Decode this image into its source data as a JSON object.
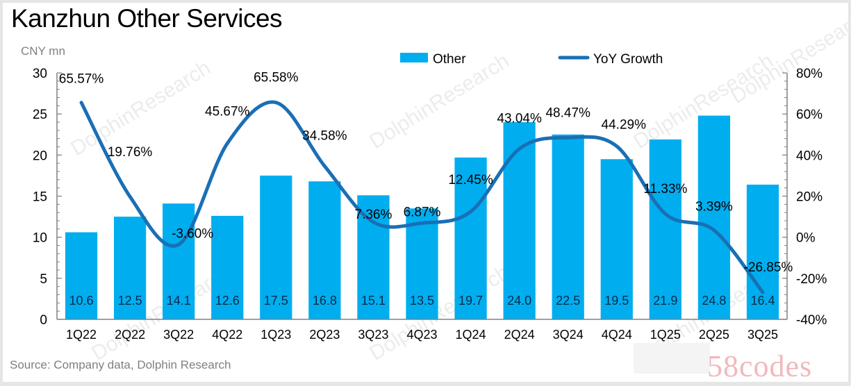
{
  "title": "Kanzhun Other Services",
  "unit_label": "CNY mn",
  "source": "Source: Company data, Dolphin Research",
  "watermark_text": "DolphinResearch",
  "corner_watermark": "58codes",
  "colors": {
    "bar": "#00AEEF",
    "line": "#1A6FB5",
    "axis": "#808080",
    "watermark": "#F2B8BC"
  },
  "chart_data": {
    "type": "bar+line",
    "title": "Kanzhun Other Services",
    "xlabel": "",
    "ylabel": "CNY mn",
    "y2label": "YoY Growth",
    "categories": [
      "1Q22",
      "2Q22",
      "3Q22",
      "4Q22",
      "1Q23",
      "2Q23",
      "3Q23",
      "4Q23",
      "1Q24",
      "2Q24",
      "3Q24",
      "4Q24",
      "1Q25",
      "2Q25",
      "3Q25"
    ],
    "series": [
      {
        "name": "Other",
        "type": "bar",
        "axis": "left",
        "values": [
          10.6,
          12.5,
          14.1,
          12.6,
          17.5,
          16.8,
          15.1,
          13.5,
          19.7,
          24.0,
          22.5,
          19.5,
          21.9,
          24.8,
          16.4
        ],
        "labels": [
          "10.6",
          "12.5",
          "14.1",
          "12.6",
          "17.5",
          "16.8",
          "15.1",
          "13.5",
          "19.7",
          "24.0",
          "22.5",
          "19.5",
          "21.9",
          "24.8",
          "16.4"
        ]
      },
      {
        "name": "YoY Growth",
        "type": "line",
        "axis": "right",
        "values": [
          65.57,
          19.76,
          -3.6,
          45.67,
          65.58,
          34.58,
          7.36,
          6.87,
          12.45,
          43.04,
          48.47,
          44.29,
          11.33,
          3.39,
          -26.85
        ],
        "labels": [
          "65.57%",
          "19.76%",
          "-3.60%",
          "45.67%",
          "65.58%",
          "34.58%",
          "7.36%",
          "6.87%",
          "12.45%",
          "43.04%",
          "48.47%",
          "44.29%",
          "11.33%",
          "3.39%",
          "-26.85%"
        ]
      }
    ],
    "ylim": [
      0,
      30
    ],
    "y_ticks": [
      0,
      5,
      10,
      15,
      20,
      25,
      30
    ],
    "y_tick_labels": [
      "0",
      "5",
      "10",
      "15",
      "20",
      "25",
      "30"
    ],
    "y2lim": [
      -40,
      80
    ],
    "y2_ticks": [
      -40,
      -20,
      0,
      20,
      40,
      60,
      80
    ],
    "y2_tick_labels": [
      "-40%",
      "-20%",
      "0%",
      "20%",
      "40%",
      "60%",
      "80%"
    ],
    "legend": {
      "position": "top-center",
      "entries": [
        "Other",
        "YoY Growth"
      ]
    },
    "grid": false
  }
}
